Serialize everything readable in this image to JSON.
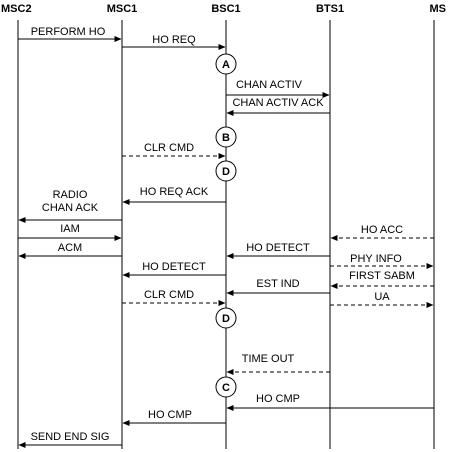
{
  "entities": [
    "MSC2",
    "MSC1",
    "BSC1",
    "BTS1",
    "MS"
  ],
  "messages": [
    {
      "from": "MSC2",
      "to": "MSC1",
      "label": [
        "PERFORM  HO"
      ],
      "style": "solid"
    },
    {
      "from": "MSC1",
      "to": "BSC1",
      "label": [
        "HO REQ"
      ],
      "style": "solid"
    },
    {
      "from": "BSC1",
      "to": "BTS1",
      "label": [
        "CHAN ACTIV"
      ],
      "style": "solid"
    },
    {
      "from": "BTS1",
      "to": "BSC1",
      "label": [
        "CHAN ACTIV ACK"
      ],
      "style": "solid"
    },
    {
      "from": "MSC1",
      "to": "BSC1",
      "label": [
        "CLR CMD"
      ],
      "style": "dashed"
    },
    {
      "from": "BSC1",
      "to": "MSC1",
      "label": [
        "HO REQ ACK"
      ],
      "style": "solid"
    },
    {
      "from": "MSC1",
      "to": "MSC2",
      "label": [
        "RADIO",
        "CHAN ACK"
      ],
      "style": "solid"
    },
    {
      "from": "MSC2",
      "to": "MSC1",
      "label": [
        "IAM"
      ],
      "style": "solid"
    },
    {
      "from": "MSC1",
      "to": "MSC2",
      "label": [
        "ACM"
      ],
      "style": "solid"
    },
    {
      "from": "MS",
      "to": "BTS1",
      "label": [
        "HO ACC"
      ],
      "style": "dashed"
    },
    {
      "from": "BTS1",
      "to": "BSC1",
      "label": [
        "HO DETECT"
      ],
      "style": "solid"
    },
    {
      "from": "BTS1",
      "to": "MS",
      "label": [
        "PHY INFO"
      ],
      "style": "dashed"
    },
    {
      "from": "BSC1",
      "to": "MSC1",
      "label": [
        "HO DETECT"
      ],
      "style": "solid"
    },
    {
      "from": "MS",
      "to": "BTS1",
      "label": [
        "FIRST SABM"
      ],
      "style": "dashed"
    },
    {
      "from": "BTS1",
      "to": "BSC1",
      "label": [
        "EST IND"
      ],
      "style": "solid"
    },
    {
      "from": "BTS1",
      "to": "MS",
      "label": [
        "UA"
      ],
      "style": "dashed"
    },
    {
      "from": "MSC1",
      "to": "BSC1",
      "label": [
        "CLR CMD"
      ],
      "style": "dashed"
    },
    {
      "from": "BTS1",
      "to": "BSC1",
      "label": [
        "TIME OUT"
      ],
      "style": "dashed"
    },
    {
      "from": "MS",
      "to": "BSC1",
      "label": [
        "HO CMP"
      ],
      "style": "solid"
    },
    {
      "from": "BSC1",
      "to": "MSC1",
      "label": [
        "HO CMP"
      ],
      "style": "solid"
    },
    {
      "from": "MSC1",
      "to": "MSC2",
      "label": [
        "SEND END SIG"
      ],
      "style": "solid"
    }
  ],
  "markers": [
    {
      "label": "A",
      "on": "BSC1"
    },
    {
      "label": "B",
      "on": "BSC1"
    },
    {
      "label": "D",
      "on": "BSC1"
    },
    {
      "label": "D",
      "on": "BSC1"
    },
    {
      "label": "C",
      "on": "BSC1"
    }
  ]
}
